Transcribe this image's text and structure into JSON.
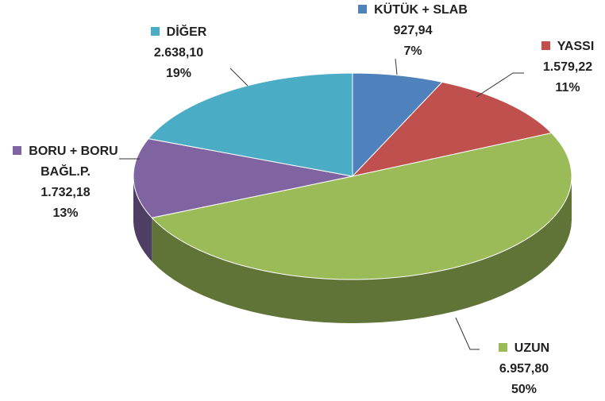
{
  "chart_data": {
    "type": "pie3d",
    "categories": [
      "KÜTÜK + SLAB",
      "YASSI",
      "UZUN",
      "BORU + BORU BAĞL.P.",
      "DİĞER"
    ],
    "values": [
      927.94,
      1579.22,
      6957.8,
      1732.18,
      2638.1
    ],
    "value_labels": [
      "927,94",
      "1.579,22",
      "6.957,80",
      "1.732,18",
      "2.638,10"
    ],
    "percentages": [
      7,
      11,
      50,
      13,
      19
    ],
    "percentage_labels": [
      "7%",
      "11%",
      "50%",
      "13%",
      "19%"
    ],
    "colors": [
      "#4f81bd",
      "#c0504d",
      "#9bbb59",
      "#8064a2",
      "#4bacc6"
    ]
  }
}
